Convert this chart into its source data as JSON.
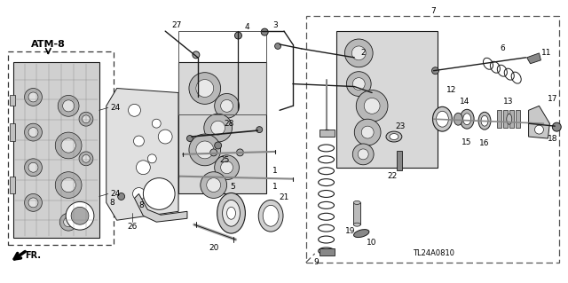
{
  "fig_width": 6.4,
  "fig_height": 3.19,
  "background_color": "#ffffff",
  "atm_label": "ATM-8",
  "diagram_code": "TL24A0810",
  "fr_label": "FR.",
  "label_fontsize": 6.5,
  "line_color": "#1a1a1a",
  "gray_fill": "#c8c8c8",
  "light_fill": "#e8e8e8"
}
